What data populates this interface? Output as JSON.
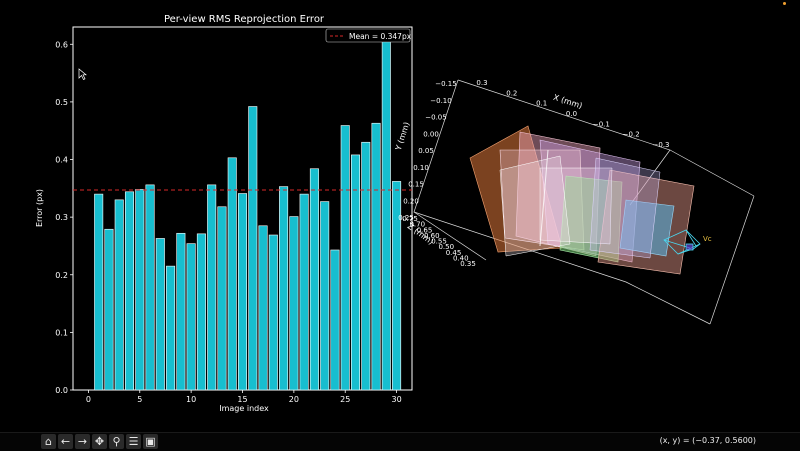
{
  "chart_data": {
    "type": "bar",
    "title": "Per-view RMS Reprojection Error",
    "xlabel": "Image index",
    "ylabel": "Error (px)",
    "x": [
      1,
      2,
      3,
      4,
      5,
      6,
      7,
      8,
      9,
      10,
      11,
      12,
      13,
      14,
      15,
      16,
      17,
      18,
      19,
      20,
      21,
      22,
      23,
      24,
      25,
      26,
      27,
      28,
      29,
      30
    ],
    "values": [
      0.34,
      0.279,
      0.33,
      0.344,
      0.348,
      0.356,
      0.263,
      0.215,
      0.272,
      0.254,
      0.271,
      0.356,
      0.318,
      0.403,
      0.341,
      0.492,
      0.285,
      0.269,
      0.353,
      0.301,
      0.34,
      0.384,
      0.327,
      0.243,
      0.459,
      0.408,
      0.43,
      0.463,
      0.611,
      0.362
    ],
    "xlim": [
      -1.5,
      31.5
    ],
    "ylim": [
      0,
      0.63
    ],
    "xticks": [
      "0",
      "5",
      "10",
      "15",
      "20",
      "25",
      "30"
    ],
    "yticks": [
      "0.0",
      "0.1",
      "0.2",
      "0.3",
      "0.4",
      "0.5",
      "0.6"
    ],
    "mean": 0.347,
    "legend": "Mean = 0.347px",
    "legend_position": "top-right",
    "bar_color": "#17becf",
    "mean_color": "#d62728"
  },
  "plot3d": {
    "x_label": "X (mm)",
    "y_label": "Y (mm)",
    "z_label": "Z (mm)",
    "x_ticks": [
      "0.3",
      "0.2",
      "0.1",
      "0.0",
      "−0.1",
      "−0.2",
      "−0.3"
    ],
    "y_ticks": [
      "−0.15",
      "−0.10",
      "−0.05",
      "0.00",
      "0.05",
      "0.10",
      "0.15",
      "0.20",
      "0.25"
    ],
    "z_ticks": [
      "0.75",
      "0.70",
      "0.65",
      "0.60",
      "0.55",
      "0.50",
      "0.45",
      "0.40",
      "0.35"
    ],
    "camera_label": "Vc"
  },
  "toolbar": {
    "home": "⌂",
    "back": "←",
    "forward": "→",
    "pan": "✥",
    "zoom": "⚲",
    "configure": "☰",
    "save": "▣",
    "coordinates": "(x, y) = (−0.37, 0.5600)"
  }
}
